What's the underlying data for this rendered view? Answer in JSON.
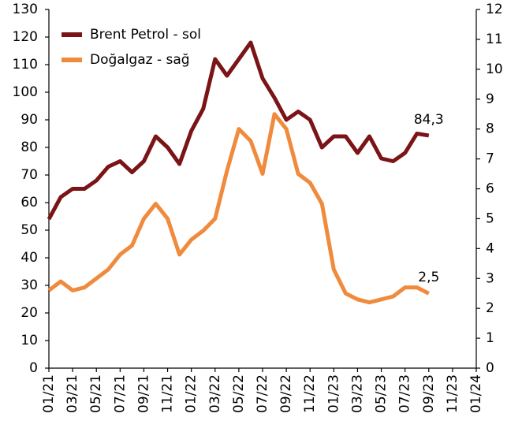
{
  "chart_data": {
    "type": "line",
    "x": [
      "01/21",
      "02/21",
      "03/21",
      "04/21",
      "05/21",
      "06/21",
      "07/21",
      "08/21",
      "09/21",
      "10/21",
      "11/21",
      "12/21",
      "01/22",
      "02/22",
      "03/22",
      "04/22",
      "05/22",
      "06/22",
      "07/22",
      "08/22",
      "09/22",
      "10/22",
      "11/22",
      "12/22",
      "01/23",
      "02/23",
      "03/23",
      "04/23",
      "05/23",
      "06/23",
      "07/23",
      "08/23",
      "09/23"
    ],
    "xlim": [
      "01/21",
      "01/24"
    ],
    "xticks": [
      "01/21",
      "03/21",
      "05/21",
      "07/21",
      "09/21",
      "11/21",
      "01/22",
      "03/22",
      "05/22",
      "07/22",
      "09/22",
      "11/22",
      "01/23",
      "03/23",
      "05/23",
      "07/23",
      "09/23",
      "11/23",
      "01/24"
    ],
    "ylim": [
      0,
      130
    ],
    "yticks": [
      0,
      10,
      20,
      30,
      40,
      50,
      60,
      70,
      80,
      90,
      100,
      110,
      120,
      130
    ],
    "y2lim": [
      0,
      12
    ],
    "y2ticks": [
      0,
      1,
      2,
      3,
      4,
      5,
      6,
      7,
      8,
      9,
      10,
      11,
      12
    ],
    "legend": "upper left",
    "series": [
      {
        "name": "Brent Petrol - sol",
        "color": "#7b1416",
        "values": [
          54,
          62,
          65,
          65,
          68,
          73,
          75,
          71,
          75,
          84,
          80,
          74,
          86,
          94,
          112,
          106,
          112,
          118,
          105,
          98,
          90,
          93,
          90,
          80,
          84,
          84,
          78,
          84,
          76,
          75,
          78,
          85,
          84.3
        ],
        "value_labels": [
          null,
          null,
          null,
          null,
          null,
          null,
          null,
          null,
          null,
          null,
          null,
          null,
          null,
          null,
          null,
          null,
          null,
          null,
          null,
          null,
          null,
          null,
          null,
          null,
          null,
          null,
          null,
          null,
          null,
          null,
          null,
          null,
          "84,3"
        ]
      },
      {
        "name": "Doğalgaz - sağ",
        "color": "#f08a3c",
        "axis": "y2",
        "values": [
          2.6,
          2.9,
          2.6,
          2.7,
          3.0,
          3.3,
          3.8,
          4.1,
          5.0,
          5.5,
          5.0,
          3.8,
          4.3,
          4.6,
          5.0,
          6.6,
          8.0,
          7.6,
          6.5,
          8.5,
          8.0,
          6.5,
          6.2,
          5.5,
          3.3,
          2.5,
          2.3,
          2.2,
          2.3,
          2.4,
          2.7,
          2.7,
          2.5
        ],
        "value_labels": [
          null,
          null,
          null,
          null,
          null,
          null,
          null,
          null,
          null,
          null,
          null,
          null,
          null,
          null,
          null,
          null,
          null,
          null,
          null,
          null,
          null,
          null,
          null,
          null,
          null,
          null,
          null,
          null,
          null,
          null,
          null,
          null,
          "2,5"
        ]
      }
    ]
  }
}
